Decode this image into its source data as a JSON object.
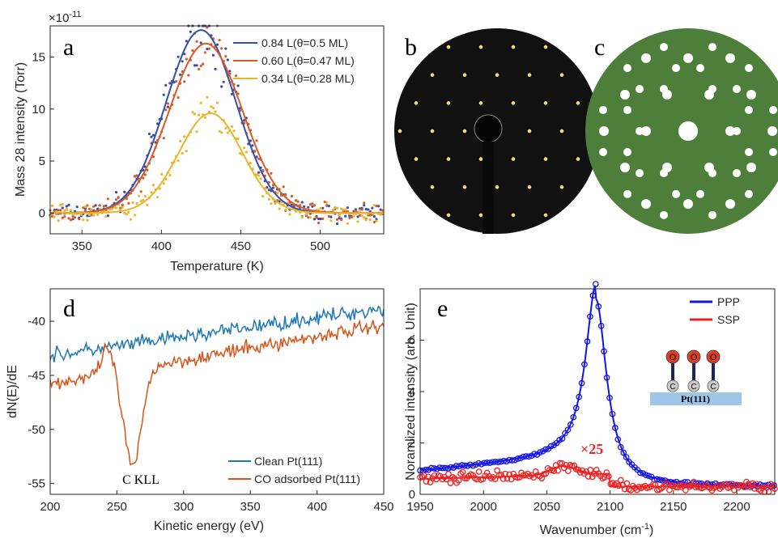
{
  "colors": {
    "a_blue": "#3a4fa3",
    "a_red": "#d85a2a",
    "a_yellow": "#e8b52c",
    "d_blue": "#1f77b4",
    "d_orange": "#d4541a",
    "e_blue": "#1414e6",
    "e_red": "#ee2222",
    "leed_bg": "#111111",
    "leed_spot": "#ece07a",
    "model_bg": "#4d7e3a",
    "model_spot": "#ffffff"
  },
  "panel_labels": {
    "a": "a",
    "b": "b",
    "c": "c",
    "d": "d",
    "e": "e"
  },
  "chart_data": [
    {
      "panel": "a",
      "type": "scatter",
      "xlabel": "Temperature (K)",
      "ylabel": "Mass 28 intensity (Torr)",
      "y_exponent": "×10",
      "y_exponent_power": "-11",
      "xlim": [
        330,
        540
      ],
      "ylim": [
        -2,
        18
      ],
      "xticks": [
        "350",
        "400",
        "450",
        "500"
      ],
      "yticks": [
        "0",
        "5",
        "10",
        "15"
      ],
      "legend_position": "top-right",
      "series": [
        {
          "name": "0.84 L(θ=0.5 ML)",
          "peak_x": 425,
          "peak_y": 17.6,
          "width": 22
        },
        {
          "name": "0.60 L(θ=0.47 ML)",
          "peak_x": 428,
          "peak_y": 16.3,
          "width": 23
        },
        {
          "name": "0.34 L(θ=0.28 ML)",
          "peak_x": 431,
          "peak_y": 9.6,
          "width": 20
        }
      ]
    },
    {
      "panel": "d",
      "type": "line",
      "xlabel": "Kinetic energy (eV)",
      "ylabel": "dN(E)/dE",
      "xlim": [
        200,
        450
      ],
      "ylim": [
        -56,
        -37
      ],
      "xticks": [
        "200",
        "250",
        "300",
        "350",
        "400",
        "450"
      ],
      "yticks": [
        "-40",
        "-45",
        "-50",
        "-55"
      ],
      "annotation": "C KLL",
      "legend_position": "bottom-right",
      "series": [
        {
          "name": "Clean Pt(111)",
          "start": -43.2,
          "end": -38.8
        },
        {
          "name": "CO adsorbed Pt(111)",
          "start": -45.8,
          "end": -40.3,
          "dip_x": 262,
          "dip_min": -53.5
        }
      ]
    },
    {
      "panel": "e",
      "type": "line",
      "xlabel": "Wavenumber (cm",
      "xlabel_sup": "-1",
      "xlabel_close": ")",
      "ylabel": "Noramlized intensity (arb. Unit)",
      "xlim": [
        1950,
        2230
      ],
      "ylim": [
        0,
        8
      ],
      "xticks": [
        "1950",
        "2000",
        "2050",
        "2100",
        "2150",
        "2200"
      ],
      "yticks": [
        "0",
        "2",
        "4",
        "6"
      ],
      "legend_position": "top-right",
      "multiplier_label": "×25",
      "inset": {
        "atom_top": "O",
        "atom_bottom": "C",
        "surface": "Pt(111)"
      },
      "series": [
        {
          "name": "PPP",
          "peak_x": 2089,
          "peak_y": 7.7,
          "baseline": 0.9
        },
        {
          "name": "SSP",
          "peak_x": 2063,
          "peak_y": 1.1,
          "baseline": 0.6
        }
      ]
    }
  ]
}
